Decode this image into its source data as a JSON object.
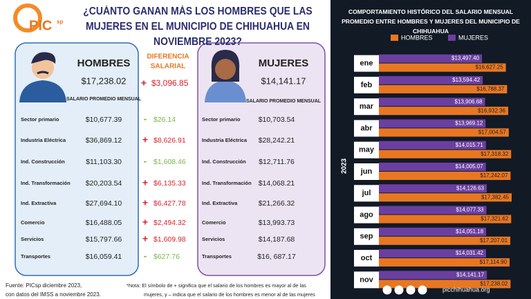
{
  "logo": "PIC",
  "logo_sup": "sp",
  "title": "¿CUÁNTO GANAN MÁS LOS HOMBRES QUE LAS MUJERES EN EL MUNICIPIO DE CHIHUAHUA EN NOVIEMBRE 2023?",
  "hombres": {
    "title": "HOMBRES",
    "average": "$17,238.02",
    "average_label": "SALARIO PROMEDIO MENSUAL"
  },
  "mujeres": {
    "title": "Mujeres",
    "average": "$14,141.17",
    "average_label": "SALARIO PROMEDIO MENSUAL"
  },
  "difference": {
    "title_lines": [
      "DIFERENCIA",
      "SALARIAL"
    ],
    "sign": "+",
    "value": "$3,096.85"
  },
  "sectors": [
    {
      "name": "Sector primario",
      "hombres": "$10,677.39",
      "mujeres": "$10,703.54",
      "sign": "-",
      "difference": "$26.14"
    },
    {
      "name": "Industria Eléctrica",
      "hombres": "$36,869.12",
      "mujeres": "$28,242.21",
      "sign": "+",
      "difference": "$8,626.91"
    },
    {
      "name": "Ind. Construcción",
      "hombres": "$11,103.30",
      "mujeres": "$12,711.76",
      "sign": "-",
      "difference": "$1,608.46"
    },
    {
      "name": "Ind. Transformación",
      "hombres": "$20,203.54",
      "mujeres": "$14,068.21",
      "sign": "+",
      "difference": "$6,135.33"
    },
    {
      "name": "Ind. Extractiva",
      "hombres": "$27,694.10",
      "mujeres": "$21,266.32",
      "sign": "+",
      "difference": "$6,427.78"
    },
    {
      "name": "Comercio",
      "hombres": "$16,488.05",
      "mujeres": "$13,993.73",
      "sign": "+",
      "difference": "$2,494.32"
    },
    {
      "name": "Servicios",
      "hombres": "$15,797.66",
      "mujeres": "$14,187.68",
      "sign": "+",
      "difference": "$1,609.98"
    },
    {
      "name": "Transportes",
      "hombres": "$16,059.41",
      "mujeres": "$16, 687.17",
      "sign": "-",
      "difference": "$627.76"
    }
  ],
  "source": [
    "Fuente: PICsp diciembre 2023,",
    "con datos del IMSS a noviembre 2023."
  ],
  "note": [
    "*Nota: El símbolo de + significa que el salario de los hombres es mayor al de las",
    "mujeres, y – indica que el salario de los hombres es menor al de las mujeres"
  ],
  "website": "picchihuahua.org",
  "chart_data": {
    "type": "bar",
    "orientation": "horizontal",
    "title": "COMPORTAMIENTO HISTÓRICO DEL SALARIO MENSUAL PROMEDIO ENTRE HOMBRES Y MUJERES DEL MUNICIPIO DE CHIHUAHUA",
    "y_label": "2023",
    "categories": [
      "ene",
      "feb",
      "mar",
      "abr",
      "may",
      "jun",
      "jul",
      "ago",
      "sep",
      "oct",
      "nov"
    ],
    "series": [
      {
        "name": "HOMBRES",
        "color": "#e87722",
        "values": [
          16627.25,
          16788.37,
          16932.36,
          17004.57,
          17318.32,
          17242.07,
          17382.45,
          17321.62,
          17207.01,
          17114.9,
          17238.02
        ],
        "value_labels": [
          "$16,627.25",
          "$16,788.37",
          "$16,932.36",
          "$17,004.57",
          "$17,318.32",
          "$17,242.07",
          "$17,382.45",
          "$17,321.62",
          "$17,207.01",
          "$17,114.90",
          "$17,238.02"
        ]
      },
      {
        "name": "MUJERES",
        "color": "#6b3fa0",
        "values": [
          13497.4,
          13594.42,
          13906.68,
          13969.12,
          14015.71,
          14005.07,
          14126.63,
          14077.33,
          14051.18,
          14031.42,
          14141.17
        ],
        "value_labels": [
          "$13,497.40",
          "$13,594.42",
          "$13,906.68",
          "$13,969.12",
          "$14,015.71",
          "$14,005.07",
          "$14,126.63",
          "$14,077.33",
          "$14,051.18",
          "$14,031.42",
          "$14,141.17"
        ]
      }
    ]
  }
}
